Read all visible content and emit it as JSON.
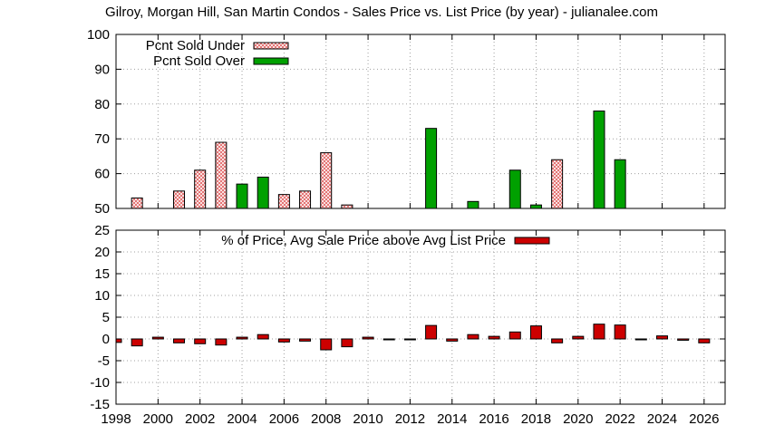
{
  "chart_data": [
    {
      "type": "bar",
      "title": "Gilroy, Morgan Hill, San Martin Condos - Sales Price vs. List Price (by year) - julianalee.com",
      "xlabel": "",
      "ylabel": "",
      "ylim": [
        50,
        100
      ],
      "yticks": [
        50,
        60,
        70,
        80,
        90,
        100
      ],
      "xlim": [
        1998,
        2027
      ],
      "grid": true,
      "legend_position": "top-left",
      "series": [
        {
          "name": "Pcnt Sold Under",
          "color": "#f0b8b0",
          "pattern": "crosshatch",
          "points": [
            {
              "x": 1999,
              "y": 53
            },
            {
              "x": 2001,
              "y": 55
            },
            {
              "x": 2002,
              "y": 61
            },
            {
              "x": 2003,
              "y": 69
            },
            {
              "x": 2006,
              "y": 54
            },
            {
              "x": 2007,
              "y": 55
            },
            {
              "x": 2008,
              "y": 66
            },
            {
              "x": 2009,
              "y": 51
            },
            {
              "x": 2019,
              "y": 64
            }
          ]
        },
        {
          "name": "Pcnt Sold Over",
          "color": "#00a000",
          "pattern": "solid",
          "points": [
            {
              "x": 2004,
              "y": 57
            },
            {
              "x": 2005,
              "y": 59
            },
            {
              "x": 2013,
              "y": 73
            },
            {
              "x": 2015,
              "y": 52
            },
            {
              "x": 2017,
              "y": 61
            },
            {
              "x": 2018,
              "y": 51
            },
            {
              "x": 2021,
              "y": 78
            },
            {
              "x": 2022,
              "y": 64
            }
          ]
        }
      ]
    },
    {
      "type": "bar",
      "title": "",
      "xlabel": "",
      "ylabel": "",
      "ylim": [
        -15,
        25
      ],
      "yticks": [
        -15,
        -10,
        -5,
        0,
        5,
        10,
        15,
        20,
        25
      ],
      "xlim": [
        1998,
        2027
      ],
      "xticks": [
        1998,
        2000,
        2002,
        2004,
        2006,
        2008,
        2010,
        2012,
        2014,
        2016,
        2018,
        2020,
        2022,
        2024,
        2026
      ],
      "grid": true,
      "legend_position": "top-center",
      "series": [
        {
          "name": "% of Price, Avg Sale Price above Avg List Price",
          "color": "#cc0000",
          "points": [
            {
              "x": 1998,
              "y": -0.8
            },
            {
              "x": 1999,
              "y": -1.6
            },
            {
              "x": 2000,
              "y": 0.4
            },
            {
              "x": 2001,
              "y": -0.9
            },
            {
              "x": 2002,
              "y": -1.1
            },
            {
              "x": 2003,
              "y": -1.4
            },
            {
              "x": 2004,
              "y": 0.4
            },
            {
              "x": 2005,
              "y": 1.0
            },
            {
              "x": 2006,
              "y": -0.7
            },
            {
              "x": 2007,
              "y": -0.5
            },
            {
              "x": 2008,
              "y": -2.5
            },
            {
              "x": 2009,
              "y": -1.8
            },
            {
              "x": 2010,
              "y": 0.4
            },
            {
              "x": 2011,
              "y": -0.1
            },
            {
              "x": 2012,
              "y": -0.1
            },
            {
              "x": 2013,
              "y": 3.1
            },
            {
              "x": 2014,
              "y": -0.5
            },
            {
              "x": 2015,
              "y": 1.0
            },
            {
              "x": 2016,
              "y": 0.6
            },
            {
              "x": 2017,
              "y": 1.6
            },
            {
              "x": 2018,
              "y": 3.0
            },
            {
              "x": 2019,
              "y": -0.9
            },
            {
              "x": 2020,
              "y": 0.6
            },
            {
              "x": 2021,
              "y": 3.4
            },
            {
              "x": 2022,
              "y": 3.2
            },
            {
              "x": 2023,
              "y": -0.1
            },
            {
              "x": 2024,
              "y": 0.7
            },
            {
              "x": 2025,
              "y": -0.3
            },
            {
              "x": 2026,
              "y": -0.9
            }
          ]
        }
      ]
    }
  ]
}
